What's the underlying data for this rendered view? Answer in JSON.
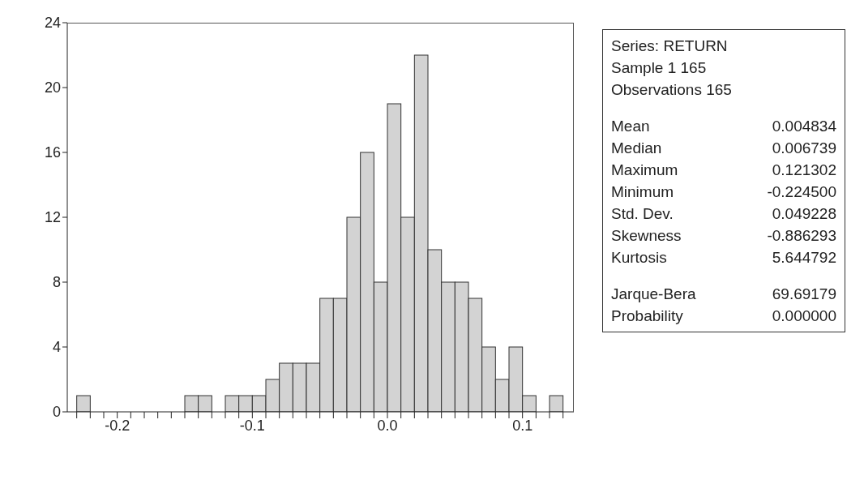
{
  "chart_data": {
    "type": "histogram",
    "bins": [
      -0.23,
      -0.22,
      -0.21,
      -0.2,
      -0.19,
      -0.18,
      -0.17,
      -0.16,
      -0.15,
      -0.14,
      -0.13,
      -0.12,
      -0.11,
      -0.1,
      -0.09,
      -0.08,
      -0.07,
      -0.06,
      -0.05,
      -0.04,
      -0.03,
      -0.02,
      -0.01,
      0.0,
      0.01,
      0.02,
      0.03,
      0.04,
      0.05,
      0.06,
      0.07,
      0.08,
      0.09,
      0.1,
      0.11,
      0.12,
      0.13
    ],
    "values": [
      1,
      0,
      0,
      0,
      0,
      0,
      0,
      0,
      1,
      1,
      0,
      1,
      1,
      1,
      2,
      3,
      3,
      3,
      7,
      7,
      12,
      16,
      8,
      19,
      12,
      22,
      10,
      8,
      8,
      7,
      4,
      2,
      4,
      1,
      0,
      1
    ],
    "color": "#d3d3d3",
    "xlim": [
      -0.237,
      0.138
    ],
    "xticks": [
      {
        "value": -0.23,
        "label": null
      },
      {
        "value": -0.22,
        "label": null
      },
      {
        "value": -0.21,
        "label": null
      },
      {
        "value": -0.2,
        "label": "-0.2"
      },
      {
        "value": -0.19,
        "label": null
      },
      {
        "value": -0.18,
        "label": null
      },
      {
        "value": -0.17,
        "label": null
      },
      {
        "value": -0.16,
        "label": null
      },
      {
        "value": -0.15,
        "label": null
      },
      {
        "value": -0.14,
        "label": null
      },
      {
        "value": -0.13,
        "label": null
      },
      {
        "value": -0.12,
        "label": null
      },
      {
        "value": -0.11,
        "label": null
      },
      {
        "value": -0.1,
        "label": "-0.1"
      },
      {
        "value": -0.09,
        "label": null
      },
      {
        "value": -0.08,
        "label": null
      },
      {
        "value": -0.07,
        "label": null
      },
      {
        "value": -0.06,
        "label": null
      },
      {
        "value": -0.05,
        "label": null
      },
      {
        "value": -0.04,
        "label": null
      },
      {
        "value": -0.03,
        "label": null
      },
      {
        "value": -0.02,
        "label": null
      },
      {
        "value": -0.01,
        "label": null
      },
      {
        "value": 0.0,
        "label": "0.0"
      },
      {
        "value": 0.01,
        "label": null
      },
      {
        "value": 0.02,
        "label": null
      },
      {
        "value": 0.03,
        "label": null
      },
      {
        "value": 0.04,
        "label": null
      },
      {
        "value": 0.05,
        "label": null
      },
      {
        "value": 0.06,
        "label": null
      },
      {
        "value": 0.07,
        "label": null
      },
      {
        "value": 0.08,
        "label": null
      },
      {
        "value": 0.09,
        "label": null
      },
      {
        "value": 0.1,
        "label": "0.1"
      },
      {
        "value": 0.11,
        "label": null
      },
      {
        "value": 0.12,
        "label": null
      },
      {
        "value": 0.13,
        "label": null
      }
    ],
    "ylim": [
      0,
      24
    ],
    "yticks": [
      0,
      4,
      8,
      12,
      16,
      20,
      24
    ],
    "annotations": [
      "Series: RETURN",
      "Sample 1 165",
      "Observations 165",
      "Mean 0.004834",
      "Median 0.006739",
      "Maximum 0.121302",
      "Minimum -0.224500",
      "Std. Dev. 0.049228",
      "Skewness -0.886293",
      "Kurtosis 5.644792",
      "Jarque-Bera 69.69179",
      "Probability 0.000000"
    ]
  }
}
